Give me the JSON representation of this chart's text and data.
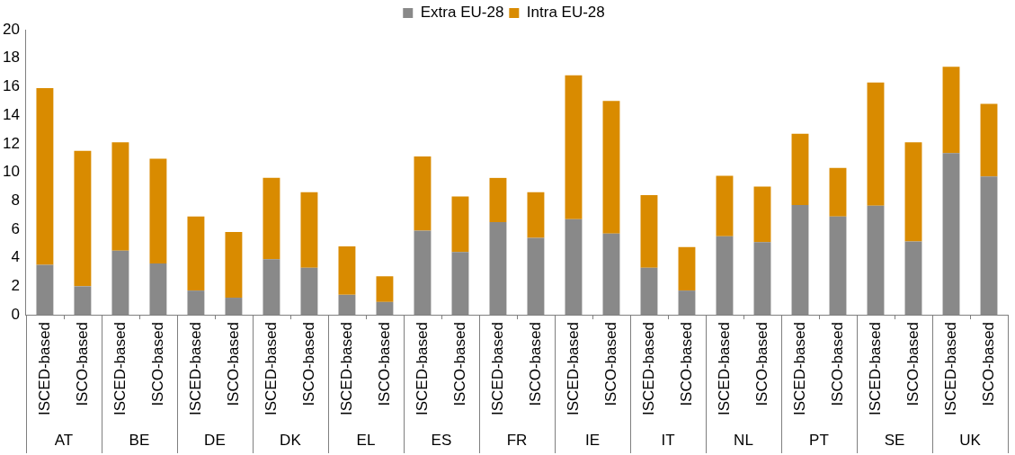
{
  "chart_data": {
    "type": "bar",
    "stacked": true,
    "categories": [
      "ISCED-based",
      "ISCO-based",
      "ISCED-based",
      "ISCO-based",
      "ISCED-based",
      "ISCO-based",
      "ISCED-based",
      "ISCO-based",
      "ISCED-based",
      "ISCO-based",
      "ISCED-based",
      "ISCO-based",
      "ISCED-based",
      "ISCO-based",
      "ISCED-based",
      "ISCO-based",
      "ISCED-based",
      "ISCO-based",
      "ISCED-based",
      "ISCO-based",
      "ISCED-based",
      "ISCO-based",
      "ISCED-based",
      "ISCO-based",
      "ISCED-based",
      "ISCO-based"
    ],
    "series": [
      {
        "name": "Extra EU-28",
        "color": "#898989",
        "values": [
          3.5,
          2.0,
          4.5,
          3.6,
          1.7,
          1.2,
          3.9,
          3.3,
          1.4,
          0.9,
          5.9,
          4.4,
          6.5,
          5.4,
          6.7,
          5.7,
          3.3,
          1.7,
          5.5,
          5.1,
          7.7,
          6.9,
          7.65,
          5.15,
          11.35,
          9.7
        ]
      },
      {
        "name": "Intra EU-28",
        "color": "#d98b00",
        "values": [
          12.4,
          9.5,
          7.6,
          7.35,
          5.2,
          4.6,
          5.7,
          5.3,
          3.4,
          1.8,
          5.2,
          3.9,
          3.1,
          3.2,
          10.1,
          9.3,
          5.1,
          3.05,
          4.25,
          3.9,
          5.0,
          3.4,
          8.65,
          6.95,
          6.05,
          5.1
        ]
      }
    ],
    "annotations": [
      "AT",
      "BE",
      "DE",
      "DK",
      "EL",
      "ES",
      "FR",
      "IE",
      "IT",
      "NL",
      "PT",
      "SE",
      "UK"
    ],
    "ylim": [
      0,
      20
    ],
    "yticks": [
      0,
      2,
      4,
      6,
      8,
      10,
      12,
      14,
      16,
      18,
      20
    ],
    "grid": false,
    "legend": "top"
  }
}
